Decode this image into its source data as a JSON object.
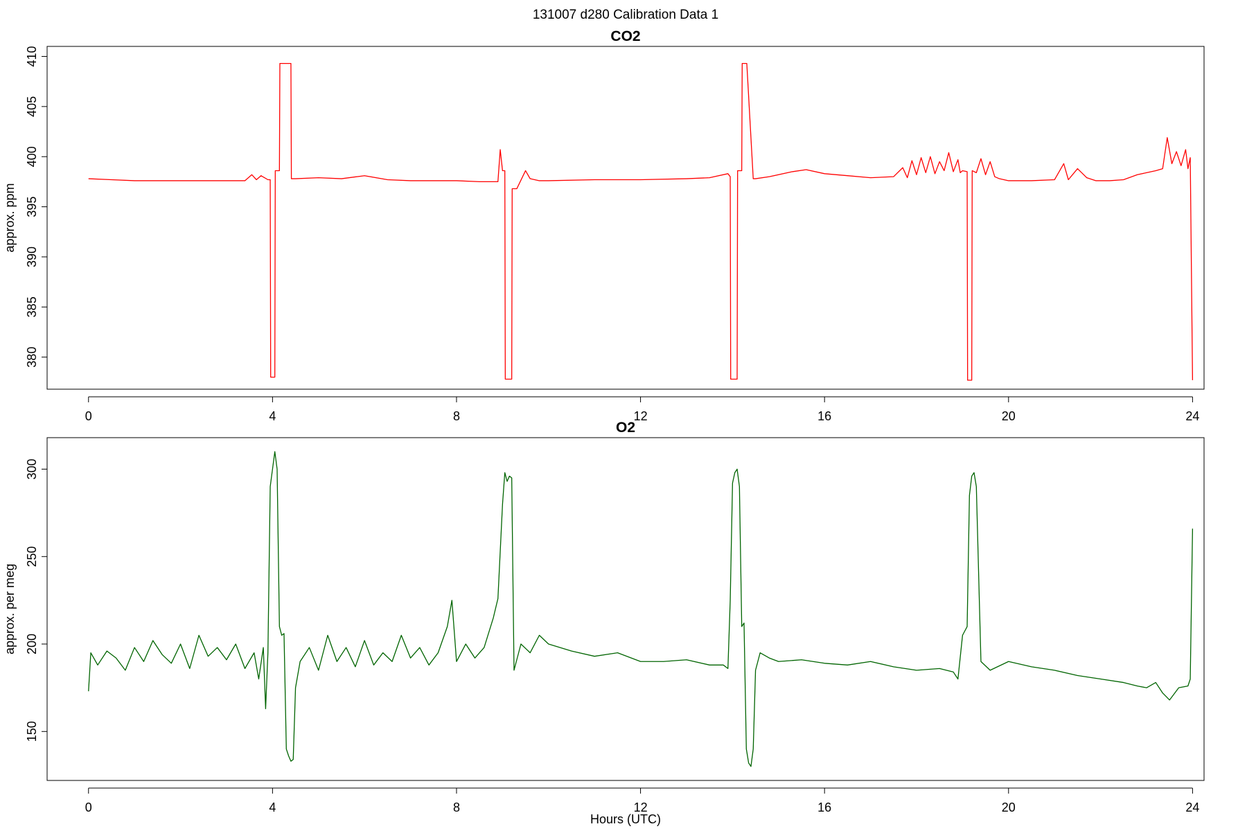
{
  "figure": {
    "suptitle": "131007   d280   Calibration Data 1"
  },
  "chart_data": [
    {
      "type": "line",
      "title": "CO2",
      "xlabel": "",
      "ylabel": "approx. ppm",
      "xlim": [
        -0.9,
        24.25
      ],
      "ylim": [
        376.8,
        411.0
      ],
      "xticks": [
        0,
        4,
        8,
        12,
        16,
        20,
        24
      ],
      "yticks": [
        380,
        385,
        390,
        395,
        400,
        405,
        410
      ],
      "grid": false,
      "color": "#ff0000",
      "series": [
        {
          "x": [
            0.0,
            0.5,
            1.0,
            1.5,
            2.0,
            2.5,
            3.0,
            3.4,
            3.55,
            3.65,
            3.75,
            3.9,
            3.95,
            3.96,
            4.05,
            4.06,
            4.15,
            4.16,
            4.25,
            4.26,
            4.4,
            4.41,
            4.5,
            5.0,
            5.5,
            6.0,
            6.5,
            7.0,
            7.5,
            8.0,
            8.5,
            8.9,
            8.95,
            9.0,
            9.05,
            9.06,
            9.2,
            9.21,
            9.3,
            9.31,
            9.5,
            9.6,
            9.8,
            10.0,
            11.0,
            12.0,
            13.0,
            13.5,
            13.9,
            13.95,
            13.96,
            14.1,
            14.11,
            14.2,
            14.21,
            14.3,
            14.31,
            14.45,
            14.5,
            14.8,
            15.3,
            15.6,
            16.0,
            16.5,
            17.0,
            17.5,
            17.7,
            17.8,
            17.9,
            18.0,
            18.1,
            18.2,
            18.3,
            18.4,
            18.5,
            18.6,
            18.7,
            18.8,
            18.9,
            18.95,
            19.0,
            19.1,
            19.11,
            19.2,
            19.21,
            19.3,
            19.4,
            19.5,
            19.6,
            19.7,
            19.8,
            20.0,
            20.5,
            21.0,
            21.2,
            21.3,
            21.5,
            21.7,
            21.9,
            22.2,
            22.5,
            22.8,
            23.0,
            23.2,
            23.35,
            23.45,
            23.55,
            23.65,
            23.75,
            23.85,
            23.9,
            23.95,
            24.0
          ],
          "y": [
            397.8,
            397.7,
            397.6,
            397.6,
            397.6,
            397.6,
            397.6,
            397.6,
            398.2,
            397.7,
            398.1,
            397.7,
            397.7,
            378.0,
            378.0,
            398.6,
            398.6,
            409.3,
            409.3,
            409.3,
            409.3,
            397.8,
            397.8,
            397.9,
            397.8,
            398.1,
            397.7,
            397.6,
            397.6,
            397.6,
            397.5,
            397.5,
            400.7,
            398.6,
            398.6,
            377.8,
            377.8,
            396.8,
            396.8,
            396.8,
            398.6,
            397.8,
            397.6,
            397.6,
            397.7,
            397.7,
            397.8,
            397.9,
            398.3,
            398.0,
            377.8,
            377.8,
            398.6,
            398.6,
            409.3,
            409.3,
            409.3,
            397.8,
            397.8,
            398.0,
            398.5,
            398.7,
            398.3,
            398.1,
            397.9,
            398.0,
            398.9,
            397.9,
            399.6,
            398.2,
            399.9,
            398.4,
            400.0,
            398.3,
            399.5,
            398.6,
            400.4,
            398.5,
            399.7,
            398.4,
            398.6,
            398.5,
            377.7,
            377.7,
            398.6,
            398.4,
            399.8,
            398.2,
            399.5,
            398.0,
            397.8,
            397.6,
            397.6,
            397.7,
            399.3,
            397.7,
            398.8,
            397.9,
            397.6,
            397.6,
            397.7,
            398.2,
            398.4,
            398.6,
            398.8,
            401.9,
            399.3,
            400.5,
            399.1,
            400.7,
            398.8,
            399.9,
            377.7
          ]
        }
      ]
    },
    {
      "type": "line",
      "title": "O2",
      "xlabel": "Hours (UTC)",
      "ylabel": "approx. per meg",
      "xlim": [
        -0.9,
        24.25
      ],
      "ylim": [
        122.0,
        318.0
      ],
      "xticks": [
        0,
        4,
        8,
        12,
        16,
        20,
        24
      ],
      "yticks": [
        150,
        200,
        250,
        300
      ],
      "grid": false,
      "color": "#006400",
      "series": [
        {
          "x": [
            0.0,
            0.05,
            0.2,
            0.4,
            0.6,
            0.8,
            1.0,
            1.2,
            1.4,
            1.6,
            1.8,
            2.0,
            2.2,
            2.4,
            2.6,
            2.8,
            3.0,
            3.2,
            3.4,
            3.6,
            3.7,
            3.8,
            3.85,
            3.9,
            3.95,
            4.0,
            4.05,
            4.1,
            4.15,
            4.2,
            4.25,
            4.3,
            4.35,
            4.4,
            4.45,
            4.5,
            4.6,
            4.8,
            5.0,
            5.2,
            5.4,
            5.6,
            5.8,
            6.0,
            6.2,
            6.4,
            6.6,
            6.8,
            7.0,
            7.2,
            7.4,
            7.6,
            7.8,
            7.9,
            8.0,
            8.2,
            8.4,
            8.6,
            8.8,
            8.9,
            9.0,
            9.05,
            9.1,
            9.15,
            9.2,
            9.25,
            9.3,
            9.4,
            9.6,
            9.8,
            10.0,
            10.5,
            11.0,
            11.5,
            12.0,
            12.5,
            13.0,
            13.5,
            13.8,
            13.9,
            13.95,
            14.0,
            14.05,
            14.1,
            14.15,
            14.2,
            14.25,
            14.3,
            14.35,
            14.4,
            14.45,
            14.5,
            14.6,
            14.8,
            15.0,
            15.5,
            16.0,
            16.5,
            17.0,
            17.5,
            18.0,
            18.5,
            18.8,
            18.9,
            19.0,
            19.1,
            19.15,
            19.2,
            19.25,
            19.3,
            19.4,
            19.6,
            20.0,
            20.5,
            21.0,
            21.5,
            22.0,
            22.5,
            22.8,
            23.0,
            23.2,
            23.35,
            23.5,
            23.7,
            23.9,
            23.95,
            24.0
          ],
          "y": [
            173,
            195,
            188,
            196,
            192,
            185,
            198,
            190,
            202,
            194,
            189,
            200,
            186,
            205,
            193,
            198,
            191,
            200,
            186,
            195,
            180,
            198,
            163,
            195,
            290,
            300,
            310,
            300,
            210,
            205,
            206,
            140,
            136,
            133,
            134,
            175,
            190,
            198,
            185,
            205,
            190,
            198,
            187,
            202,
            188,
            195,
            190,
            205,
            192,
            198,
            188,
            195,
            210,
            225,
            190,
            200,
            192,
            198,
            215,
            226,
            280,
            298,
            293,
            296,
            295,
            185,
            190,
            200,
            195,
            205,
            200,
            196,
            193,
            195,
            190,
            190,
            191,
            188,
            188,
            186,
            225,
            292,
            298,
            300,
            290,
            210,
            212,
            140,
            132,
            130,
            140,
            185,
            195,
            192,
            190,
            191,
            189,
            188,
            190,
            187,
            185,
            186,
            184,
            180,
            205,
            210,
            285,
            296,
            298,
            290,
            190,
            185,
            190,
            187,
            185,
            182,
            180,
            178,
            176,
            175,
            178,
            172,
            168,
            175,
            176,
            180,
            266
          ]
        }
      ]
    }
  ]
}
